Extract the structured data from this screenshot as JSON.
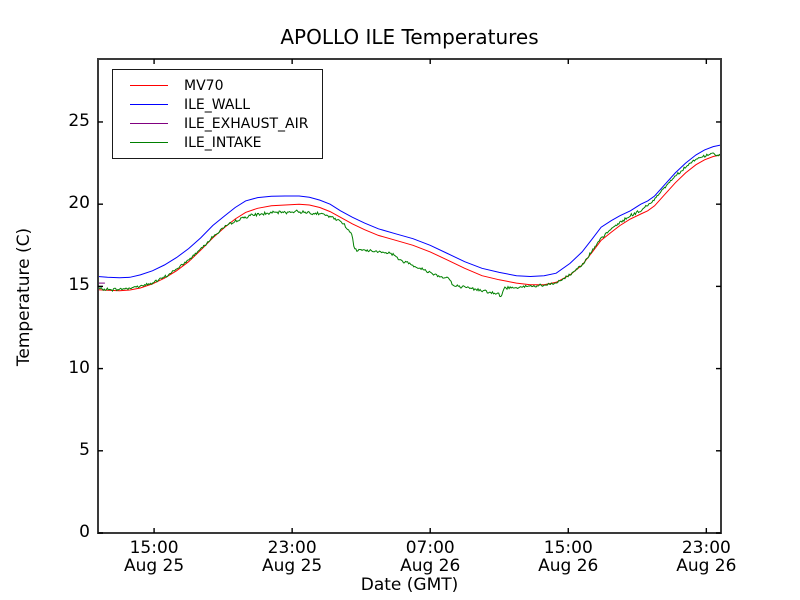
{
  "window": {
    "background": "#ffffff",
    "frame_color": "#3a3a3a"
  },
  "chart": {
    "title": "APOLLO ILE Temperatures",
    "xlabel": "Date (GMT)",
    "ylabel": "Temperature (C)"
  },
  "chart_data": {
    "type": "line",
    "title": "APOLLO ILE Temperatures",
    "xlabel": "Date (GMT)",
    "ylabel": "Temperature (C)",
    "x_unit": "hours_since_Aug_25_00:00_GMT",
    "xlim": [
      11.75,
      47.85
    ],
    "ylim": [
      0,
      28.83
    ],
    "grid": false,
    "legend_position": "upper-left",
    "x_ticks": [
      {
        "value": 15,
        "time": "15:00",
        "date": "Aug 25"
      },
      {
        "value": 23,
        "time": "23:00",
        "date": "Aug 25"
      },
      {
        "value": 31,
        "time": "07:00",
        "date": "Aug 26"
      },
      {
        "value": 39,
        "time": "15:00",
        "date": "Aug 26"
      },
      {
        "value": 47,
        "time": "23:00",
        "date": "Aug 26"
      }
    ],
    "y_ticks": [
      0,
      5,
      10,
      15,
      20,
      25
    ],
    "series": [
      {
        "name": "MV70",
        "color": "#ff0000",
        "noise": 0,
        "points": [
          [
            11.75,
            14.8
          ],
          [
            12.3,
            14.76
          ],
          [
            13,
            14.74
          ],
          [
            13.6,
            14.78
          ],
          [
            14.2,
            14.9
          ],
          [
            14.9,
            15.15
          ],
          [
            15.6,
            15.5
          ],
          [
            16.3,
            15.95
          ],
          [
            17,
            16.5
          ],
          [
            17.7,
            17.2
          ],
          [
            18.4,
            17.95
          ],
          [
            19.1,
            18.6
          ],
          [
            19.7,
            19.1
          ],
          [
            20.3,
            19.5
          ],
          [
            21,
            19.75
          ],
          [
            21.8,
            19.9
          ],
          [
            22.6,
            19.95
          ],
          [
            23.4,
            20.0
          ],
          [
            24,
            19.95
          ],
          [
            24.6,
            19.8
          ],
          [
            25.2,
            19.55
          ],
          [
            25.8,
            19.2
          ],
          [
            26.5,
            18.8
          ],
          [
            27.2,
            18.45
          ],
          [
            28,
            18.1
          ],
          [
            29,
            17.8
          ],
          [
            30,
            17.5
          ],
          [
            31,
            17.1
          ],
          [
            32,
            16.6
          ],
          [
            33,
            16.1
          ],
          [
            34,
            15.65
          ],
          [
            35,
            15.4
          ],
          [
            36,
            15.2
          ],
          [
            36.8,
            15.1
          ],
          [
            37.6,
            15.1
          ],
          [
            38.3,
            15.25
          ],
          [
            39.1,
            15.7
          ],
          [
            39.8,
            16.3
          ],
          [
            40.4,
            17.1
          ],
          [
            40.9,
            17.8
          ],
          [
            41.5,
            18.3
          ],
          [
            42,
            18.7
          ],
          [
            42.6,
            19.1
          ],
          [
            43.2,
            19.4
          ],
          [
            43.6,
            19.6
          ],
          [
            44,
            19.9
          ],
          [
            44.6,
            20.6
          ],
          [
            45.2,
            21.3
          ],
          [
            45.8,
            21.9
          ],
          [
            46.4,
            22.4
          ],
          [
            46.9,
            22.7
          ],
          [
            47.4,
            22.9
          ],
          [
            47.85,
            23.0
          ]
        ]
      },
      {
        "name": "ILE_WALL",
        "color": "#0000ff",
        "noise": 0,
        "points": [
          [
            11.75,
            15.6
          ],
          [
            12.3,
            15.55
          ],
          [
            13,
            15.52
          ],
          [
            13.6,
            15.55
          ],
          [
            14.2,
            15.7
          ],
          [
            14.9,
            15.95
          ],
          [
            15.6,
            16.3
          ],
          [
            16.3,
            16.75
          ],
          [
            17,
            17.3
          ],
          [
            17.7,
            17.95
          ],
          [
            18.4,
            18.7
          ],
          [
            19.1,
            19.3
          ],
          [
            19.7,
            19.8
          ],
          [
            20.3,
            20.2
          ],
          [
            21,
            20.4
          ],
          [
            21.8,
            20.48
          ],
          [
            22.6,
            20.5
          ],
          [
            23.4,
            20.5
          ],
          [
            24,
            20.42
          ],
          [
            24.6,
            20.25
          ],
          [
            25.2,
            20.0
          ],
          [
            25.8,
            19.6
          ],
          [
            26.5,
            19.2
          ],
          [
            27.2,
            18.85
          ],
          [
            28,
            18.5
          ],
          [
            29,
            18.2
          ],
          [
            30,
            17.9
          ],
          [
            31,
            17.5
          ],
          [
            32,
            17.0
          ],
          [
            33,
            16.5
          ],
          [
            34,
            16.1
          ],
          [
            35,
            15.85
          ],
          [
            36,
            15.65
          ],
          [
            36.8,
            15.6
          ],
          [
            37.6,
            15.65
          ],
          [
            38.3,
            15.8
          ],
          [
            39.1,
            16.4
          ],
          [
            39.8,
            17.1
          ],
          [
            40.4,
            17.9
          ],
          [
            40.9,
            18.6
          ],
          [
            41.5,
            19.0
          ],
          [
            42,
            19.3
          ],
          [
            42.6,
            19.6
          ],
          [
            43.2,
            20.0
          ],
          [
            43.6,
            20.2
          ],
          [
            44,
            20.5
          ],
          [
            44.6,
            21.2
          ],
          [
            45.2,
            21.9
          ],
          [
            45.8,
            22.5
          ],
          [
            46.4,
            23.0
          ],
          [
            46.9,
            23.3
          ],
          [
            47.4,
            23.5
          ],
          [
            47.85,
            23.6
          ]
        ]
      },
      {
        "name": "ILE_EXHAUST_AIR",
        "color": "#800080",
        "noise": 0,
        "points": [
          [
            11.75,
            15.2
          ],
          [
            12.15,
            15.2
          ]
        ]
      },
      {
        "name": "ILE_INTAKE",
        "color": "#008000",
        "noise": 0.07,
        "points": [
          [
            11.75,
            14.85
          ],
          [
            12.5,
            14.8
          ],
          [
            13.3,
            14.85
          ],
          [
            14.1,
            15.0
          ],
          [
            14.9,
            15.2
          ],
          [
            15.6,
            15.55
          ],
          [
            16.3,
            16.05
          ],
          [
            17,
            16.6
          ],
          [
            17.7,
            17.3
          ],
          [
            18.4,
            18.0
          ],
          [
            19,
            18.55
          ],
          [
            19.6,
            18.9
          ],
          [
            20.2,
            19.2
          ],
          [
            20.8,
            19.35
          ],
          [
            21.6,
            19.45
          ],
          [
            22.4,
            19.5
          ],
          [
            23.2,
            19.55
          ],
          [
            24,
            19.5
          ],
          [
            24.7,
            19.4
          ],
          [
            25.3,
            19.2
          ],
          [
            25.9,
            18.9
          ],
          [
            26.4,
            18.3
          ],
          [
            26.5,
            17.9
          ],
          [
            26.6,
            17.25
          ],
          [
            27.1,
            17.2
          ],
          [
            27.7,
            17.15
          ],
          [
            28.3,
            17.1
          ],
          [
            28.9,
            16.95
          ],
          [
            29.2,
            16.6
          ],
          [
            29.8,
            16.4
          ],
          [
            30.4,
            16.1
          ],
          [
            31,
            15.85
          ],
          [
            31.6,
            15.6
          ],
          [
            32.1,
            15.5
          ],
          [
            32.3,
            15.05
          ],
          [
            32.9,
            14.95
          ],
          [
            33.5,
            14.85
          ],
          [
            34.1,
            14.75
          ],
          [
            34.6,
            14.6
          ],
          [
            35.0,
            14.5
          ],
          [
            35.1,
            14.35
          ],
          [
            35.3,
            14.9
          ],
          [
            36,
            14.95
          ],
          [
            36.8,
            15.0
          ],
          [
            37.6,
            15.05
          ],
          [
            38.3,
            15.2
          ],
          [
            39.1,
            15.7
          ],
          [
            39.8,
            16.35
          ],
          [
            40.4,
            17.15
          ],
          [
            40.9,
            17.9
          ],
          [
            41.5,
            18.5
          ],
          [
            42,
            18.9
          ],
          [
            42.6,
            19.3
          ],
          [
            43.2,
            19.6
          ],
          [
            43.8,
            20.1
          ],
          [
            44.4,
            20.8
          ],
          [
            45,
            21.5
          ],
          [
            45.6,
            22.1
          ],
          [
            46.2,
            22.6
          ],
          [
            46.7,
            22.85
          ],
          [
            47.1,
            23.0
          ],
          [
            47.4,
            23.1
          ],
          [
            47.6,
            22.95
          ],
          [
            47.85,
            22.9
          ]
        ]
      }
    ]
  }
}
